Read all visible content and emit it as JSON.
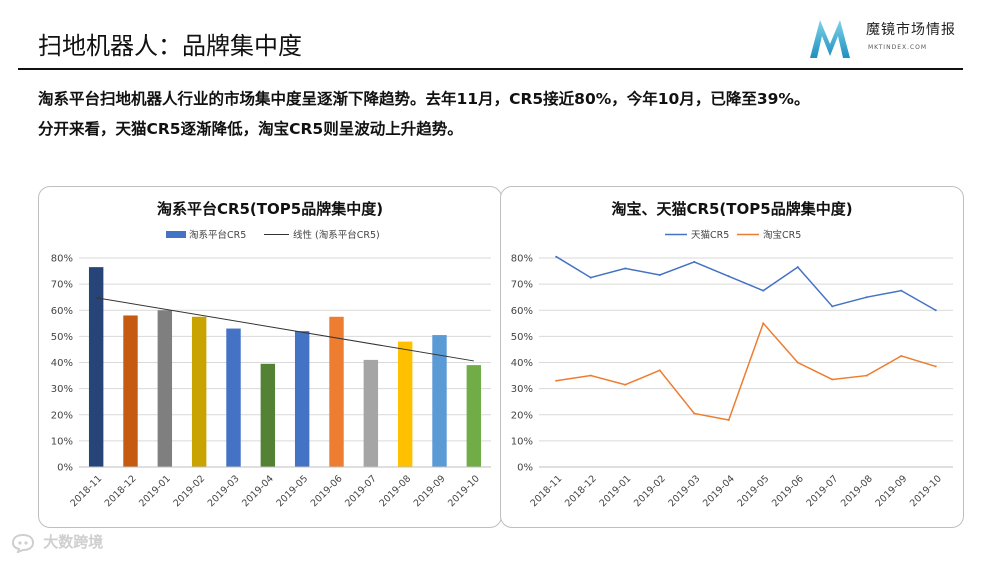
{
  "page": {
    "title": "扫地机器人：品牌集中度",
    "summary_line1": "淘系平台扫地机器人行业的市场集中度呈逐渐下降趋势。去年11月，CR5接近80%，今年10月，已降至39%。",
    "summary_line2": "分开来看，天猫CR5逐渐降低，淘宝CR5则呈波动上升趋势。"
  },
  "logo": {
    "name": "魔镜市场情报",
    "sub": "MKTINDEX.COM",
    "icon": "m-logo-icon"
  },
  "watermark": {
    "text": "大数跨境",
    "icon": "chat-bubble-logo-icon"
  },
  "colors": {
    "blue": "#4472C4",
    "orange": "#ED7D31",
    "grey": "#A5A5A5",
    "gold": "#FFC000",
    "lightblue": "#5B9BD5",
    "green": "#70AD47",
    "navy": "#264478",
    "rust": "#9E480E",
    "darkgrey": "#636363",
    "darkgold": "#997300",
    "steelblue": "#255E91",
    "darkgreen": "#43682B",
    "trendline": "#333333",
    "grid": "#d9d9d9"
  },
  "chart_data": [
    {
      "type": "bar",
      "title": "淘系平台CR5(TOP5品牌集中度)",
      "categories": [
        "2018-11",
        "2018-12",
        "2019-01",
        "2019-02",
        "2019-03",
        "2019-04",
        "2019-05",
        "2019-06",
        "2019-07",
        "2019-08",
        "2019-09",
        "2019-10"
      ],
      "series": [
        {
          "name": "淘系平台CR5",
          "values": [
            0.765,
            0.58,
            0.6,
            0.575,
            0.53,
            0.395,
            0.52,
            0.575,
            0.41,
            0.48,
            0.505,
            0.39
          ]
        }
      ],
      "bar_colors": [
        "#264478",
        "#C55A11",
        "#7F7F7F",
        "#C9A300",
        "#4472C4",
        "#548235",
        "#4472C4",
        "#ED7D31",
        "#A5A5A5",
        "#FFC000",
        "#5B9BD5",
        "#70AD47"
      ],
      "trendline": {
        "name": "线性 (淘系平台CR5)",
        "start": 0.648,
        "end": 0.406
      },
      "ylim": [
        0,
        0.8
      ],
      "yticks": [
        "0%",
        "10%",
        "20%",
        "30%",
        "40%",
        "50%",
        "60%",
        "70%",
        "80%"
      ],
      "grid": true,
      "legend_position": "top"
    },
    {
      "type": "line",
      "title": "淘宝、天猫CR5(TOP5品牌集中度)",
      "categories": [
        "2018-11",
        "2018-12",
        "2019-01",
        "2019-02",
        "2019-03",
        "2019-04",
        "2019-05",
        "2019-06",
        "2019-07",
        "2019-08",
        "2019-09",
        "2019-10"
      ],
      "series": [
        {
          "name": "天猫CR5",
          "color": "#4472C4",
          "values": [
            0.805,
            0.725,
            0.76,
            0.735,
            0.785,
            0.73,
            0.675,
            0.765,
            0.615,
            0.65,
            0.675,
            0.6
          ]
        },
        {
          "name": "淘宝CR5",
          "color": "#ED7D31",
          "values": [
            0.33,
            0.35,
            0.315,
            0.37,
            0.205,
            0.18,
            0.55,
            0.4,
            0.335,
            0.35,
            0.425,
            0.385
          ]
        }
      ],
      "ylim": [
        0,
        0.8
      ],
      "yticks": [
        "0%",
        "10%",
        "20%",
        "30%",
        "40%",
        "50%",
        "60%",
        "70%",
        "80%"
      ],
      "grid": true,
      "legend_position": "top"
    }
  ]
}
